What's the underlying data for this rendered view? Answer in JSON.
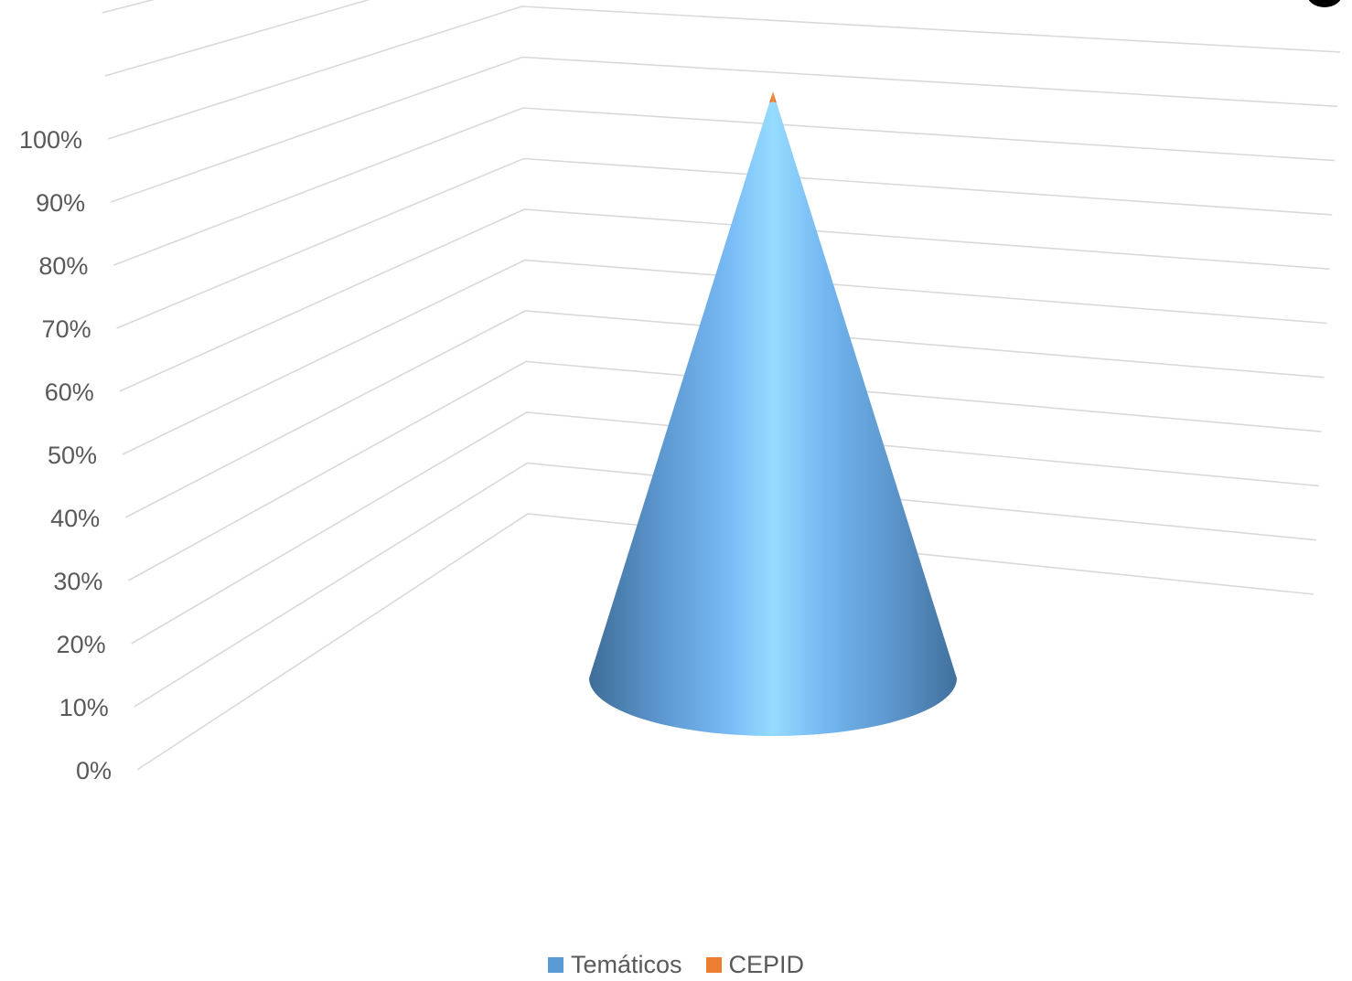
{
  "chart_data": {
    "type": "bar",
    "variant": "3d-cone-100%-stacked",
    "categories": [
      ""
    ],
    "series": [
      {
        "name": "Temáticos",
        "values": [
          0.98
        ],
        "color": "#5b9bd5"
      },
      {
        "name": "CEPID",
        "values": [
          0.02
        ],
        "color": "#ed7d31"
      }
    ],
    "yticks": [
      "0%",
      "10%",
      "20%",
      "30%",
      "40%",
      "50%",
      "60%",
      "70%",
      "80%",
      "90%",
      "100%"
    ],
    "ylim": [
      0,
      1
    ],
    "grid": true,
    "legend": "bottom-center"
  }
}
